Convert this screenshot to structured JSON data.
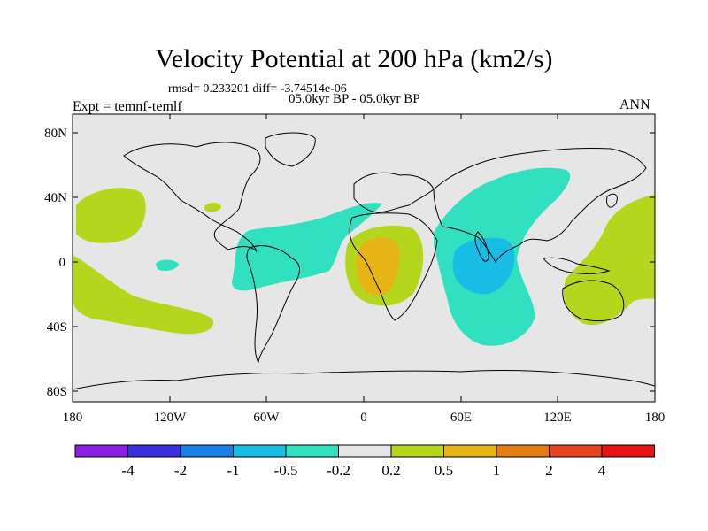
{
  "title": "Velocity Potential at 200 hPa (km2/s)",
  "stats": "rmsd= 0.233201 diff= -3.74514e-06",
  "period": "05.0kyr BP - 05.0kyr BP",
  "experiment": "Expt = temnf-temlf",
  "season": "ANN",
  "axes": {
    "y_labels": [
      "80N",
      "40N",
      "0",
      "40S",
      "80S"
    ],
    "x_labels": [
      "180",
      "120W",
      "60W",
      "0",
      "60E",
      "120E",
      "180"
    ]
  },
  "colorbar": {
    "labels": [
      "-4",
      "-2",
      "-1",
      "-0.5",
      "-0.2",
      "0.2",
      "0.5",
      "1",
      "2",
      "4"
    ],
    "colors": [
      "#8c1fe6",
      "#3a30e0",
      "#1a7ee6",
      "#18bde6",
      "#30e0c0",
      "#e6e6e6",
      "#b4d71e",
      "#e6b414",
      "#e67d14",
      "#e6461e",
      "#e61414"
    ]
  },
  "colors": {
    "background_field": "#e6e6e6",
    "positive_weak": "#b4d71e",
    "positive_moderate": "#e6b414",
    "negative_weak": "#30e0c0",
    "negative_moderate": "#18bde6"
  }
}
